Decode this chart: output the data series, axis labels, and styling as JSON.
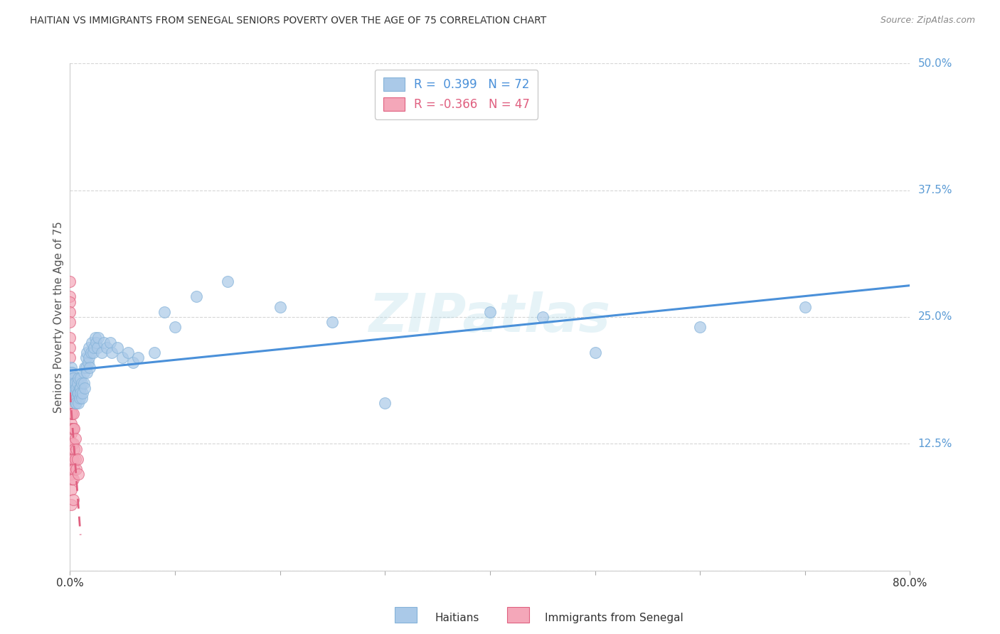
{
  "title": "HAITIAN VS IMMIGRANTS FROM SENEGAL SENIORS POVERTY OVER THE AGE OF 75 CORRELATION CHART",
  "source": "Source: ZipAtlas.com",
  "ylabel": "Seniors Poverty Over the Age of 75",
  "watermark": "ZIPatlas",
  "background_color": "#ffffff",
  "grid_color": "#cccccc",
  "title_color": "#333333",
  "ytick_color": "#5b9bd5",
  "xtick_color": "#333333",
  "line_color1": "#4a90d9",
  "line_color2": "#e06080",
  "scatter_color1": "#aac9e8",
  "scatter_color2": "#f4a7b9",
  "scatter_edge1": "#85b3d9",
  "scatter_edge2": "#e06080",
  "legend_color1": "#aac9e8",
  "legend_color2": "#f4a7b9",
  "legend_label1": "R =  0.399   N = 72",
  "legend_label2": "R = -0.366   N = 47",
  "legend_text_color1": "#4a90d9",
  "legend_text_color2": "#e06080",
  "footer_label1": "Haitians",
  "footer_label2": "Immigrants from Senegal",
  "xmin": 0.0,
  "xmax": 0.8,
  "ymin": 0.0,
  "ymax": 0.5,
  "haitian_x": [
    0.001,
    0.001,
    0.001,
    0.002,
    0.002,
    0.003,
    0.003,
    0.004,
    0.004,
    0.004,
    0.005,
    0.005,
    0.005,
    0.006,
    0.006,
    0.006,
    0.007,
    0.007,
    0.008,
    0.008,
    0.008,
    0.009,
    0.009,
    0.01,
    0.01,
    0.01,
    0.011,
    0.011,
    0.012,
    0.013,
    0.013,
    0.014,
    0.014,
    0.015,
    0.015,
    0.016,
    0.016,
    0.017,
    0.018,
    0.018,
    0.019,
    0.02,
    0.021,
    0.022,
    0.023,
    0.024,
    0.025,
    0.026,
    0.027,
    0.03,
    0.032,
    0.035,
    0.038,
    0.04,
    0.045,
    0.05,
    0.055,
    0.06,
    0.065,
    0.08,
    0.09,
    0.1,
    0.12,
    0.15,
    0.2,
    0.25,
    0.3,
    0.4,
    0.45,
    0.5,
    0.6,
    0.7
  ],
  "haitian_y": [
    0.195,
    0.185,
    0.2,
    0.18,
    0.195,
    0.175,
    0.19,
    0.18,
    0.17,
    0.185,
    0.175,
    0.165,
    0.185,
    0.17,
    0.18,
    0.165,
    0.175,
    0.185,
    0.19,
    0.175,
    0.165,
    0.18,
    0.17,
    0.19,
    0.18,
    0.175,
    0.185,
    0.17,
    0.175,
    0.195,
    0.185,
    0.2,
    0.18,
    0.2,
    0.21,
    0.195,
    0.215,
    0.205,
    0.22,
    0.21,
    0.2,
    0.215,
    0.225,
    0.215,
    0.22,
    0.23,
    0.225,
    0.22,
    0.23,
    0.215,
    0.225,
    0.22,
    0.225,
    0.215,
    0.22,
    0.21,
    0.215,
    0.205,
    0.21,
    0.215,
    0.255,
    0.24,
    0.27,
    0.285,
    0.26,
    0.245,
    0.165,
    0.255,
    0.25,
    0.215,
    0.24,
    0.26
  ],
  "senegal_x": [
    0.0,
    0.0,
    0.0,
    0.0,
    0.0,
    0.0,
    0.0,
    0.0,
    0.0,
    0.0,
    0.0,
    0.0,
    0.0,
    0.0,
    0.0,
    0.001,
    0.001,
    0.001,
    0.001,
    0.001,
    0.001,
    0.001,
    0.001,
    0.001,
    0.001,
    0.001,
    0.002,
    0.002,
    0.002,
    0.002,
    0.002,
    0.002,
    0.003,
    0.003,
    0.003,
    0.003,
    0.003,
    0.003,
    0.004,
    0.004,
    0.004,
    0.005,
    0.005,
    0.006,
    0.006,
    0.007,
    0.008
  ],
  "senegal_y": [
    0.285,
    0.27,
    0.265,
    0.255,
    0.245,
    0.23,
    0.22,
    0.21,
    0.195,
    0.185,
    0.17,
    0.155,
    0.14,
    0.12,
    0.1,
    0.19,
    0.175,
    0.165,
    0.155,
    0.145,
    0.135,
    0.125,
    0.11,
    0.095,
    0.08,
    0.065,
    0.17,
    0.155,
    0.14,
    0.125,
    0.11,
    0.09,
    0.155,
    0.14,
    0.125,
    0.11,
    0.09,
    0.07,
    0.14,
    0.12,
    0.1,
    0.13,
    0.11,
    0.12,
    0.1,
    0.11,
    0.095
  ]
}
